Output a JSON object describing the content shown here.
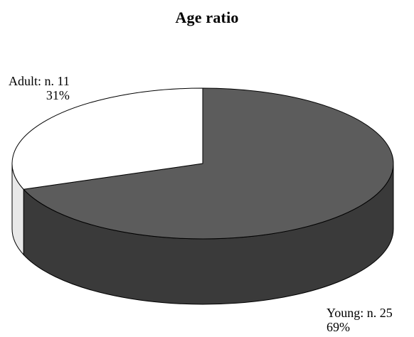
{
  "chart_data": {
    "type": "pie",
    "title": "Age ratio",
    "slices": [
      {
        "name": "Young",
        "count_label": "Young: n. 25",
        "value": 25,
        "percent_label": "69%",
        "percent": 69,
        "color": "#5c5c5c",
        "side_color": "#3a3a3a"
      },
      {
        "name": "Adult",
        "count_label": "Adult: n. 11",
        "value": 11,
        "percent_label": "31%",
        "percent": 31,
        "color": "#ffffff",
        "side_color": "#e8e8e8"
      }
    ],
    "three_d": true,
    "legend": "none"
  }
}
